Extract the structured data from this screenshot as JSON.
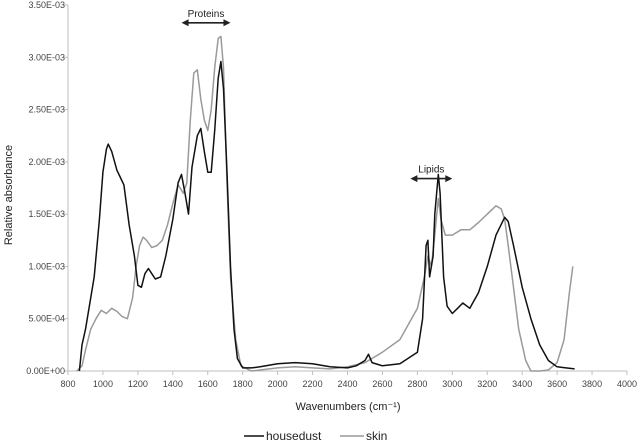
{
  "chart_data": {
    "type": "line",
    "xlabel": "Wavenumbers (cm⁻¹)",
    "ylabel": "Relative absorbance",
    "xlim": [
      800,
      4000
    ],
    "ylim": [
      0,
      0.0035
    ],
    "x_ticks": [
      "800",
      "1000",
      "1200",
      "1400",
      "1600",
      "1800",
      "2000",
      "2200",
      "2400",
      "2600",
      "2800",
      "3000",
      "3200",
      "3400",
      "3600",
      "3800",
      "4000"
    ],
    "y_ticks": [
      "0.00E+00",
      "5.00E-04",
      "1.00E-03",
      "1.50E-03",
      "2.00E-03",
      "2.50E-03",
      "3.00E-03",
      "3.50E-03"
    ],
    "legend_position": "bottom",
    "annotations": [
      {
        "text": "Proteins",
        "x_from": 1450,
        "x_to": 1730,
        "y": 0.00333
      },
      {
        "text": "Lipids",
        "x_from": 2760,
        "x_to": 3000,
        "y": 0.00184
      }
    ],
    "series": [
      {
        "name": "housedust",
        "color": "#111111",
        "points": [
          [
            865,
            0.0
          ],
          [
            880,
            0.00025
          ],
          [
            900,
            0.0004
          ],
          [
            920,
            0.0006
          ],
          [
            950,
            0.0009
          ],
          [
            980,
            0.00145
          ],
          [
            1000,
            0.0019
          ],
          [
            1020,
            0.00212
          ],
          [
            1030,
            0.00217
          ],
          [
            1050,
            0.0021
          ],
          [
            1080,
            0.00192
          ],
          [
            1100,
            0.00185
          ],
          [
            1120,
            0.00178
          ],
          [
            1150,
            0.0014
          ],
          [
            1180,
            0.0011
          ],
          [
            1200,
            0.00082
          ],
          [
            1220,
            0.0008
          ],
          [
            1240,
            0.00093
          ],
          [
            1260,
            0.00098
          ],
          [
            1280,
            0.00093
          ],
          [
            1300,
            0.00088
          ],
          [
            1330,
            0.0009
          ],
          [
            1360,
            0.0011
          ],
          [
            1400,
            0.00145
          ],
          [
            1430,
            0.0018
          ],
          [
            1450,
            0.00188
          ],
          [
            1470,
            0.0017
          ],
          [
            1490,
            0.0015
          ],
          [
            1510,
            0.00195
          ],
          [
            1540,
            0.00225
          ],
          [
            1560,
            0.00232
          ],
          [
            1580,
            0.0021
          ],
          [
            1600,
            0.0019
          ],
          [
            1620,
            0.0019
          ],
          [
            1640,
            0.0023
          ],
          [
            1660,
            0.0028
          ],
          [
            1675,
            0.00296
          ],
          [
            1690,
            0.0027
          ],
          [
            1710,
            0.0019
          ],
          [
            1730,
            0.001
          ],
          [
            1750,
            0.0004
          ],
          [
            1770,
            0.00012
          ],
          [
            1800,
            3e-05
          ],
          [
            1850,
            3e-05
          ],
          [
            1900,
            4e-05
          ],
          [
            2000,
            7e-05
          ],
          [
            2100,
            8e-05
          ],
          [
            2200,
            7e-05
          ],
          [
            2300,
            4e-05
          ],
          [
            2400,
            3e-05
          ],
          [
            2450,
            5e-05
          ],
          [
            2500,
            0.0001
          ],
          [
            2520,
            0.00016
          ],
          [
            2540,
            8e-05
          ],
          [
            2600,
            5e-05
          ],
          [
            2700,
            7e-05
          ],
          [
            2800,
            0.00018
          ],
          [
            2830,
            0.0005
          ],
          [
            2850,
            0.0012
          ],
          [
            2860,
            0.00125
          ],
          [
            2870,
            0.0009
          ],
          [
            2890,
            0.0011
          ],
          [
            2900,
            0.0015
          ],
          [
            2920,
            0.00188
          ],
          [
            2930,
            0.0017
          ],
          [
            2950,
            0.0009
          ],
          [
            2970,
            0.00062
          ],
          [
            3000,
            0.00055
          ],
          [
            3030,
            0.0006
          ],
          [
            3060,
            0.00065
          ],
          [
            3100,
            0.0006
          ],
          [
            3150,
            0.00075
          ],
          [
            3200,
            0.001
          ],
          [
            3250,
            0.0013
          ],
          [
            3300,
            0.00147
          ],
          [
            3320,
            0.00143
          ],
          [
            3350,
            0.0012
          ],
          [
            3400,
            0.0008
          ],
          [
            3450,
            0.0005
          ],
          [
            3500,
            0.00025
          ],
          [
            3550,
            0.0001
          ],
          [
            3600,
            4e-05
          ],
          [
            3650,
            3e-05
          ],
          [
            3700,
            2e-05
          ]
        ]
      },
      {
        "name": "skin",
        "color": "#9a9a9a",
        "points": [
          [
            850,
            0.0
          ],
          [
            880,
            5e-05
          ],
          [
            900,
            0.0002
          ],
          [
            930,
            0.0004
          ],
          [
            960,
            0.0005
          ],
          [
            990,
            0.00058
          ],
          [
            1020,
            0.00055
          ],
          [
            1050,
            0.0006
          ],
          [
            1080,
            0.00057
          ],
          [
            1110,
            0.00052
          ],
          [
            1140,
            0.0005
          ],
          [
            1170,
            0.0007
          ],
          [
            1190,
            0.001
          ],
          [
            1210,
            0.0012
          ],
          [
            1230,
            0.00128
          ],
          [
            1250,
            0.00125
          ],
          [
            1280,
            0.00118
          ],
          [
            1310,
            0.0012
          ],
          [
            1340,
            0.00125
          ],
          [
            1370,
            0.0014
          ],
          [
            1400,
            0.0016
          ],
          [
            1430,
            0.00178
          ],
          [
            1460,
            0.0017
          ],
          [
            1480,
            0.0018
          ],
          [
            1500,
            0.0024
          ],
          [
            1520,
            0.00285
          ],
          [
            1540,
            0.00288
          ],
          [
            1560,
            0.0026
          ],
          [
            1580,
            0.0024
          ],
          [
            1600,
            0.0023
          ],
          [
            1620,
            0.0025
          ],
          [
            1640,
            0.0029
          ],
          [
            1660,
            0.00318
          ],
          [
            1675,
            0.0032
          ],
          [
            1690,
            0.0029
          ],
          [
            1710,
            0.0018
          ],
          [
            1730,
            0.0009
          ],
          [
            1760,
            0.0003
          ],
          [
            1790,
            5e-05
          ],
          [
            1850,
            0.0
          ],
          [
            1900,
            1e-05
          ],
          [
            2000,
            3e-05
          ],
          [
            2100,
            4e-05
          ],
          [
            2200,
            3e-05
          ],
          [
            2300,
            2e-05
          ],
          [
            2350,
            3e-05
          ],
          [
            2400,
            4e-05
          ],
          [
            2500,
            8e-05
          ],
          [
            2600,
            0.00018
          ],
          [
            2700,
            0.0003
          ],
          [
            2800,
            0.0006
          ],
          [
            2840,
            0.0009
          ],
          [
            2860,
            0.0011
          ],
          [
            2880,
            0.001
          ],
          [
            2900,
            0.0013
          ],
          [
            2920,
            0.00165
          ],
          [
            2935,
            0.00145
          ],
          [
            2960,
            0.0013
          ],
          [
            3000,
            0.0013
          ],
          [
            3050,
            0.00135
          ],
          [
            3100,
            0.00135
          ],
          [
            3150,
            0.00142
          ],
          [
            3200,
            0.0015
          ],
          [
            3250,
            0.00158
          ],
          [
            3280,
            0.00155
          ],
          [
            3300,
            0.00145
          ],
          [
            3320,
            0.0012
          ],
          [
            3350,
            0.0008
          ],
          [
            3380,
            0.0004
          ],
          [
            3420,
            0.0001
          ],
          [
            3450,
            0.0
          ],
          [
            3500,
            0.0
          ],
          [
            3550,
            1e-05
          ],
          [
            3600,
            8e-05
          ],
          [
            3640,
            0.0003
          ],
          [
            3670,
            0.00075
          ],
          [
            3690,
            0.001
          ]
        ]
      }
    ]
  }
}
